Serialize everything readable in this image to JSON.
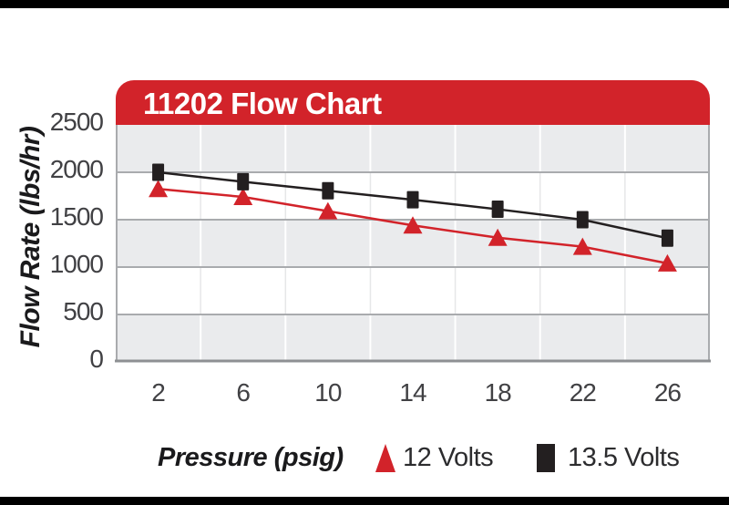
{
  "page": {
    "background_color": "#FFFFFF",
    "letterbox_color": "#000000"
  },
  "header": {
    "title": "11202 Flow Chart",
    "bar_color": "#D2232A",
    "text_color": "#FFFFFF"
  },
  "chart_data": {
    "type": "line",
    "title": "11202 Flow Chart",
    "xlabel": "Pressure (psig)",
    "ylabel": "Flow Rate (lbs/hr)",
    "x": [
      2,
      6,
      10,
      14,
      18,
      22,
      26
    ],
    "y_ticks": [
      0,
      500,
      1000,
      1500,
      2000,
      2500
    ],
    "ylim": [
      0,
      2500
    ],
    "grid": "horizontal gridlines every 500 with alternating gray band shading and faint vertical category lines",
    "legend_position": "bottom",
    "series": [
      {
        "name": "12 Volts",
        "color": "#D2232A",
        "marker": "triangle",
        "values": [
          1825,
          1740,
          1590,
          1440,
          1310,
          1215,
          1040
        ]
      },
      {
        "name": "13.5 Volts",
        "color": "#231F20",
        "marker": "square",
        "values": [
          2000,
          1900,
          1805,
          1710,
          1610,
          1500,
          1305
        ]
      }
    ]
  },
  "style_colors": {
    "band_gray": "#EAEBED",
    "gridline_gray": "#A9ABAE",
    "axis_border_gray": "#8E9093",
    "tick_text": "#414144"
  }
}
